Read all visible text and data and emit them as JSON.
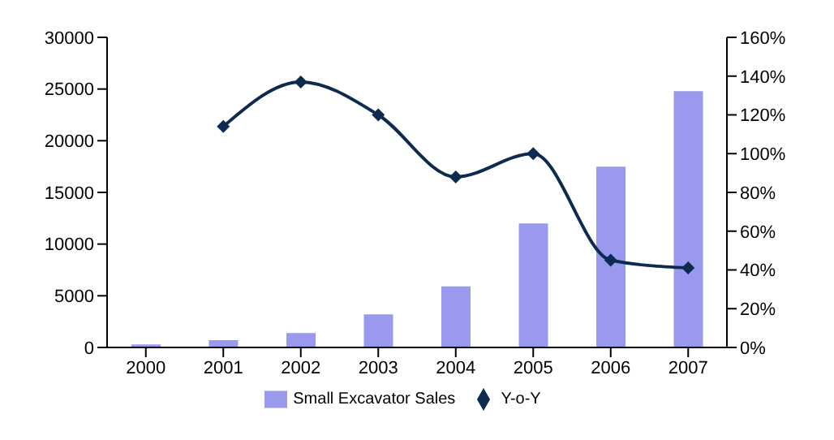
{
  "chart_data": {
    "type": "bar",
    "categories": [
      "2000",
      "2001",
      "2002",
      "2003",
      "2004",
      "2005",
      "2006",
      "2007"
    ],
    "series": [
      {
        "name": "Small Excavator Sales",
        "color": "#9999ee",
        "values": [
          300,
          700,
          1400,
          3200,
          5900,
          12000,
          17500,
          24800
        ]
      },
      {
        "name": "Y-o-Y",
        "type": "line",
        "axis": "y2",
        "color": "#0d2a4f",
        "marker": "diamond",
        "values": [
          null,
          114,
          137,
          120,
          88,
          100,
          45,
          41
        ]
      }
    ],
    "ylim": [
      0,
      30000
    ],
    "yticks": [
      0,
      5000,
      10000,
      15000,
      20000,
      25000,
      30000
    ],
    "y2lim": [
      0,
      160
    ],
    "y2ticks": [
      {
        "value": 0,
        "label": "0%"
      },
      {
        "value": 20,
        "label": "20%"
      },
      {
        "value": 40,
        "label": "40%"
      },
      {
        "value": 60,
        "label": "60%"
      },
      {
        "value": 80,
        "label": "80%"
      },
      {
        "value": 100,
        "label": "100%"
      },
      {
        "value": 120,
        "label": "120%"
      },
      {
        "value": 140,
        "label": "140%"
      },
      {
        "value": 160,
        "label": "160%"
      }
    ],
    "grid": false,
    "legend": "bottom"
  }
}
